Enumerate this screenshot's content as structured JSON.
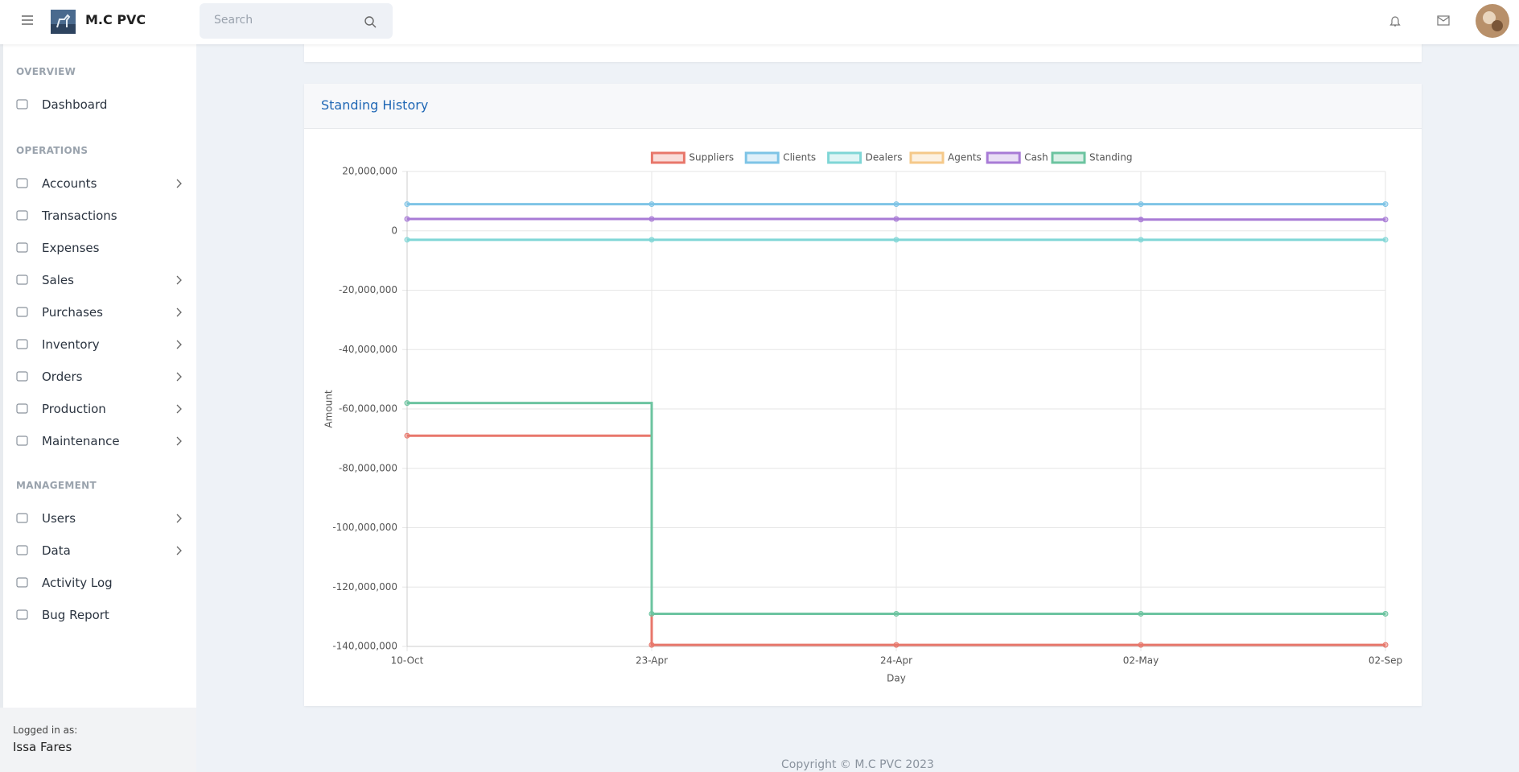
{
  "header": {
    "brand": "M.C PVC",
    "search_placeholder": "Search"
  },
  "sidebar": {
    "sections": [
      {
        "title": "OVERVIEW",
        "items": [
          {
            "label": "Dashboard",
            "chevron": false
          }
        ]
      },
      {
        "title": "OPERATIONS",
        "items": [
          {
            "label": "Accounts",
            "chevron": true
          },
          {
            "label": "Transactions",
            "chevron": false
          },
          {
            "label": "Expenses",
            "chevron": false
          },
          {
            "label": "Sales",
            "chevron": true
          },
          {
            "label": "Purchases",
            "chevron": true
          },
          {
            "label": "Inventory",
            "chevron": true
          },
          {
            "label": "Orders",
            "chevron": true
          },
          {
            "label": "Production",
            "chevron": true
          },
          {
            "label": "Maintenance",
            "chevron": true
          }
        ]
      },
      {
        "title": "MANAGEMENT",
        "items": [
          {
            "label": "Users",
            "chevron": true
          },
          {
            "label": "Data",
            "chevron": true
          },
          {
            "label": "Activity Log",
            "chevron": false
          },
          {
            "label": "Bug Report",
            "chevron": false
          }
        ]
      }
    ],
    "logged_in_label": "Logged in as:",
    "user_name": "Issa Fares"
  },
  "card_title": "Standing History",
  "chart_data": {
    "type": "line",
    "stepped": true,
    "grid": true,
    "x_label": "Day",
    "y_label": "Amount",
    "categories": [
      "10-Oct",
      "23-Apr",
      "24-Apr",
      "02-May",
      "02-Sep"
    ],
    "ylim": [
      -140000000,
      20000000
    ],
    "yticks": [
      {
        "value": -140000000,
        "label": "-140,000,000"
      },
      {
        "value": -120000000,
        "label": "-120,000,000"
      },
      {
        "value": -100000000,
        "label": "-100,000,000"
      },
      {
        "value": -80000000,
        "label": "-80,000,000"
      },
      {
        "value": -60000000,
        "label": "-60,000,000"
      },
      {
        "value": -40000000,
        "label": "-40,000,000"
      },
      {
        "value": -20000000,
        "label": "-20,000,000"
      },
      0,
      {
        "value": 20000000,
        "label": "20,000,000"
      }
    ],
    "series": [
      {
        "name": "Suppliers",
        "color": "#e8776b",
        "values": [
          -69000000,
          -139500000,
          -139500000,
          -139500000,
          -139500000
        ]
      },
      {
        "name": "Clients",
        "color": "#7ec4e6",
        "values": [
          9000000,
          9000000,
          9000000,
          9000000,
          9000000
        ]
      },
      {
        "name": "Dealers",
        "color": "#7fd6d6",
        "values": [
          -3000000,
          -3000000,
          -3000000,
          -3000000,
          -3000000
        ]
      },
      {
        "name": "Agents",
        "color": "#f5c98a",
        "values": [
          null,
          null,
          null,
          null,
          null
        ]
      },
      {
        "name": "Cash",
        "color": "#a87bd6",
        "values": [
          4000000,
          4000000,
          4000000,
          3800000,
          3800000
        ]
      },
      {
        "name": "Standing",
        "color": "#6cc4a0",
        "values": [
          -58000000,
          -129000000,
          -129000000,
          -129000000,
          -129000000
        ]
      }
    ]
  },
  "footer": "Copyright © M.C PVC 2023"
}
